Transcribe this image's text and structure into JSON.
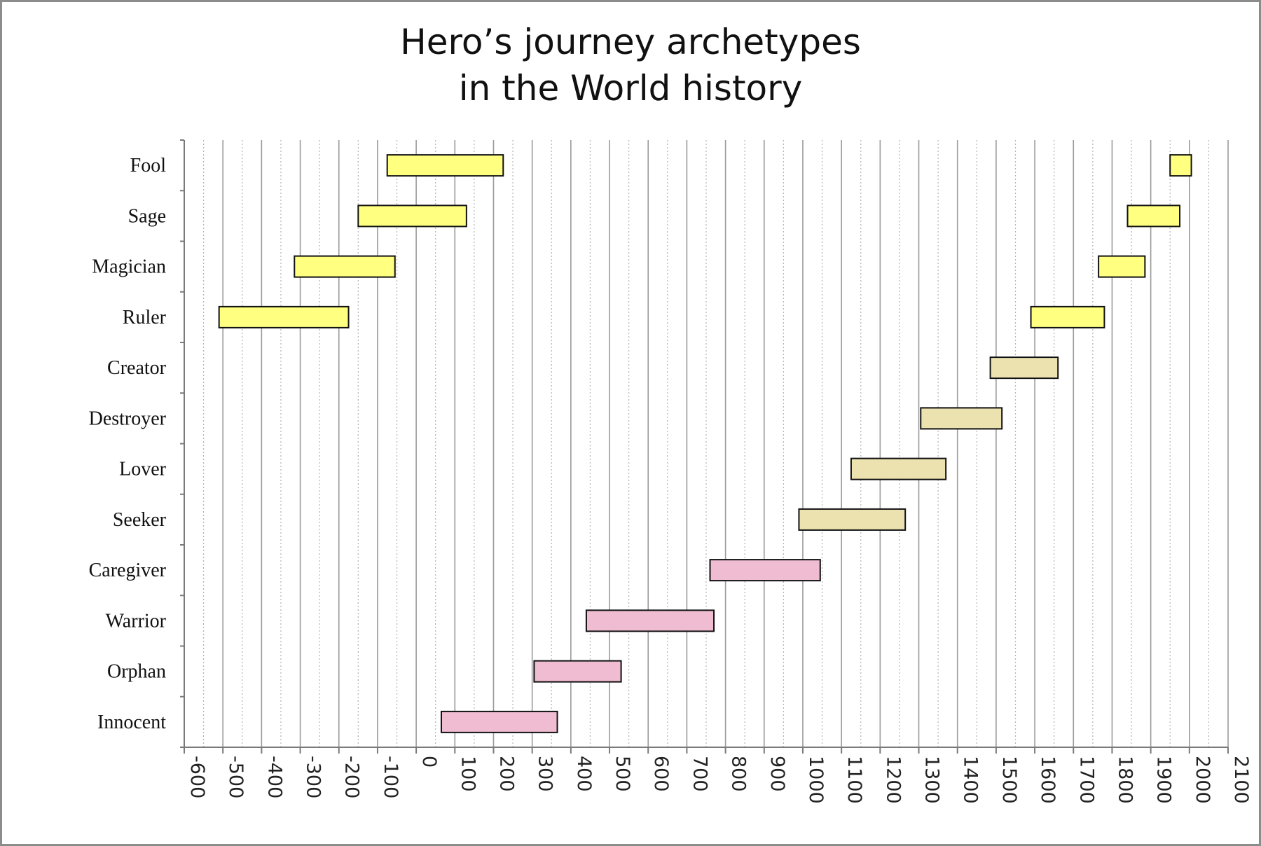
{
  "chart_data": {
    "type": "bar",
    "orientation": "horizontal-range",
    "title_lines": [
      "Hero’s journey archetypes",
      "in the World history"
    ],
    "xlabel": "",
    "ylabel": "",
    "xlim": [
      -600,
      2100
    ],
    "x_ticks": [
      -600,
      -500,
      -400,
      -300,
      -200,
      -100,
      0,
      100,
      200,
      300,
      400,
      500,
      600,
      700,
      800,
      900,
      1000,
      1100,
      1200,
      1300,
      1400,
      1500,
      1600,
      1700,
      1800,
      1900,
      2000,
      2100
    ],
    "grid": true,
    "categories": [
      "Fool",
      "Sage",
      "Magician",
      "Ruler",
      "Creator",
      "Destroyer",
      "Lover",
      "Seeker",
      "Caregiver",
      "Warrior",
      "Orphan",
      "Innocent"
    ],
    "segments": [
      {
        "category": "Fool",
        "start": -75,
        "end": 225,
        "color": "#ffff80"
      },
      {
        "category": "Fool",
        "start": 1950,
        "end": 2005,
        "color": "#ffff80"
      },
      {
        "category": "Sage",
        "start": -150,
        "end": 130,
        "color": "#ffff80"
      },
      {
        "category": "Sage",
        "start": 1840,
        "end": 1975,
        "color": "#ffff80"
      },
      {
        "category": "Magician",
        "start": -315,
        "end": -55,
        "color": "#ffff80"
      },
      {
        "category": "Magician",
        "start": 1765,
        "end": 1885,
        "color": "#ffff80"
      },
      {
        "category": "Ruler",
        "start": -510,
        "end": -175,
        "color": "#ffff80"
      },
      {
        "category": "Ruler",
        "start": 1590,
        "end": 1780,
        "color": "#ffff80"
      },
      {
        "category": "Creator",
        "start": 1485,
        "end": 1660,
        "color": "#ebe2b0"
      },
      {
        "category": "Destroyer",
        "start": 1305,
        "end": 1515,
        "color": "#ebe2b0"
      },
      {
        "category": "Lover",
        "start": 1125,
        "end": 1370,
        "color": "#ebe2b0"
      },
      {
        "category": "Seeker",
        "start": 990,
        "end": 1265,
        "color": "#ebe2b0"
      },
      {
        "category": "Caregiver",
        "start": 760,
        "end": 1045,
        "color": "#efbcd2"
      },
      {
        "category": "Warrior",
        "start": 440,
        "end": 770,
        "color": "#efbcd2"
      },
      {
        "category": "Orphan",
        "start": 305,
        "end": 530,
        "color": "#efbcd2"
      },
      {
        "category": "Innocent",
        "start": 65,
        "end": 365,
        "color": "#efbcd2"
      }
    ]
  }
}
